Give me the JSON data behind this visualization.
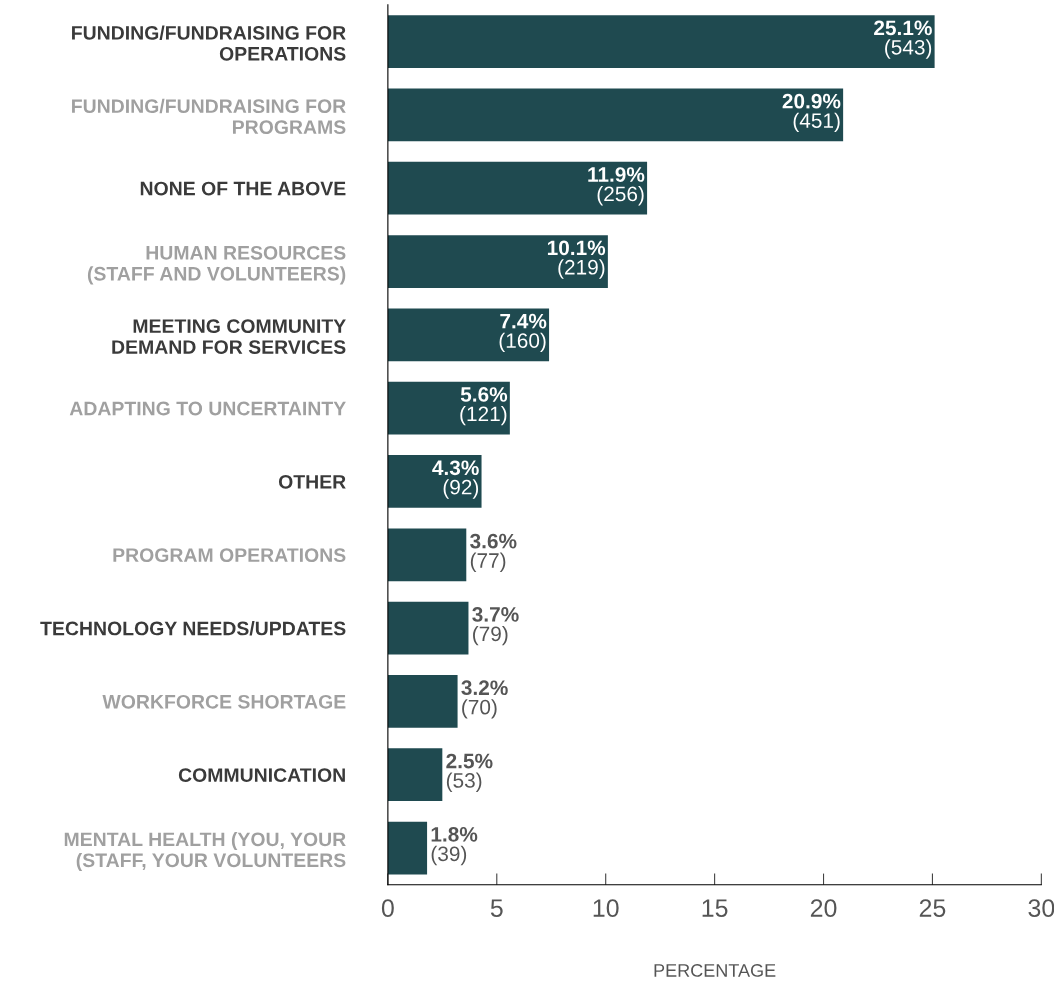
{
  "chart_data": {
    "type": "bar",
    "orientation": "horizontal",
    "xlabel": "PERCENTAGE",
    "categories": [
      "FUNDING/FUNDRAISING FOR\nOPERATIONS",
      "FUNDING/FUNDRAISING FOR\nPROGRAMS",
      "NONE OF THE ABOVE",
      "HUMAN RESOURCES\n(STAFF AND VOLUNTEERS)",
      "MEETING COMMUNITY\nDEMAND FOR SERVICES",
      "ADAPTING TO UNCERTAINTY",
      "OTHER",
      "PROGRAM OPERATIONS",
      "TECHNOLOGY NEEDS/UPDATES",
      "WORKFORCE SHORTAGE",
      "COMMUNICATION",
      "MENTAL HEALTH (YOU, YOUR\n(STAFF, YOUR VOLUNTEERS"
    ],
    "values": [
      25.1,
      20.9,
      11.9,
      10.1,
      7.4,
      5.6,
      4.3,
      3.6,
      3.7,
      3.2,
      2.5,
      1.8
    ],
    "value_labels": [
      "25.1%\n(543)",
      "20.9%\n(451)",
      "11.9%\n(256)",
      "10.1%\n(219)",
      "7.4%\n(160)",
      "5.6%\n(121)",
      "4.3%\n(92)",
      "3.6%\n(77)",
      "3.7%\n(79)",
      "3.2%\n(70)",
      "2.5%\n(53)",
      "1.8%\n(39)"
    ],
    "color": "#1f4a50",
    "xlim": [
      0,
      30
    ],
    "xticks": [
      0,
      5,
      10,
      15,
      20,
      25,
      30
    ],
    "grid": false
  }
}
